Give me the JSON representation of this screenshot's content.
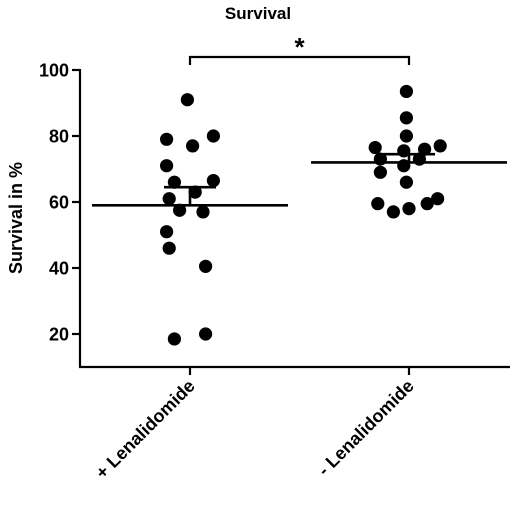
{
  "chart_data": {
    "type": "scatter",
    "title": "Survival",
    "ylabel": "Survival in %",
    "xlabel": "",
    "ylim": [
      10,
      100
    ],
    "yticks": [
      20,
      40,
      60,
      80,
      100
    ],
    "grid": false,
    "legend": "none",
    "categories": [
      "+ Lenalidomide",
      "- Lenalidomide"
    ],
    "groups": [
      {
        "category": "+ Lenalidomide",
        "points": [
          {
            "dx": -0.06,
            "y": 18.5
          },
          {
            "dx": 0.06,
            "y": 20
          },
          {
            "dx": -0.08,
            "y": 46
          },
          {
            "dx": 0.06,
            "y": 40.5
          },
          {
            "dx": -0.09,
            "y": 51
          },
          {
            "dx": 0.05,
            "y": 57
          },
          {
            "dx": -0.04,
            "y": 57.5
          },
          {
            "dx": -0.08,
            "y": 61
          },
          {
            "dx": 0.02,
            "y": 63
          },
          {
            "dx": -0.06,
            "y": 66
          },
          {
            "dx": 0.09,
            "y": 66.5
          },
          {
            "dx": -0.09,
            "y": 71
          },
          {
            "dx": -0.09,
            "y": 79
          },
          {
            "dx": 0.01,
            "y": 77
          },
          {
            "dx": 0.09,
            "y": 80
          },
          {
            "dx": -0.01,
            "y": 91
          }
        ],
        "mean": 59,
        "sem_upper": 64.5
      },
      {
        "category": "- Lenalidomide",
        "points": [
          {
            "dx": -0.12,
            "y": 59.5
          },
          {
            "dx": -0.06,
            "y": 57
          },
          {
            "dx": 0.0,
            "y": 58
          },
          {
            "dx": 0.07,
            "y": 59.5
          },
          {
            "dx": 0.11,
            "y": 61
          },
          {
            "dx": -0.01,
            "y": 66
          },
          {
            "dx": -0.11,
            "y": 69
          },
          {
            "dx": -0.02,
            "y": 71
          },
          {
            "dx": -0.11,
            "y": 73
          },
          {
            "dx": 0.04,
            "y": 73
          },
          {
            "dx": -0.13,
            "y": 76.5
          },
          {
            "dx": -0.02,
            "y": 75.5
          },
          {
            "dx": 0.06,
            "y": 76
          },
          {
            "dx": 0.12,
            "y": 77
          },
          {
            "dx": -0.01,
            "y": 80
          },
          {
            "dx": -0.01,
            "y": 85.5
          },
          {
            "dx": -0.01,
            "y": 93.5
          }
        ],
        "mean": 72,
        "sem_upper": 74.5
      }
    ],
    "significance": {
      "from": "+ Lenalidomide",
      "to": "- Lenalidomide",
      "label": "*"
    }
  }
}
